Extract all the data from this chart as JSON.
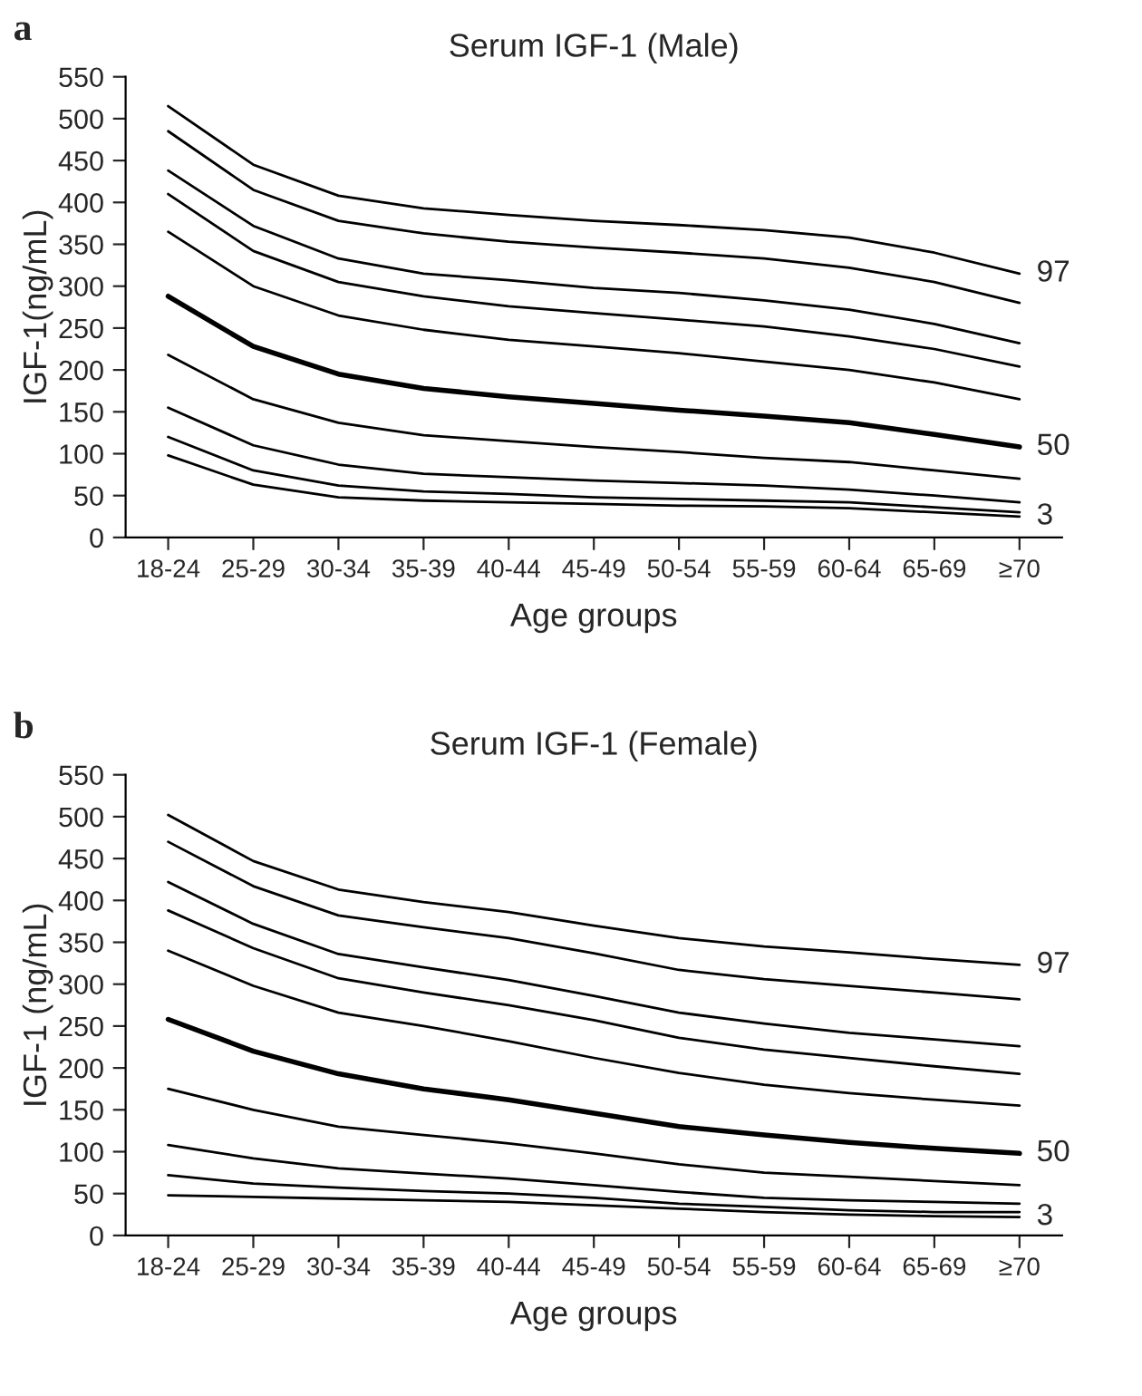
{
  "chart_data": [
    {
      "type": "line",
      "title": "Serum IGF-1 (Male)",
      "xlabel": "Age groups",
      "ylabel": "IGF-1(ng/mL)",
      "annotations": [
        "a"
      ],
      "categories": [
        "18-24",
        "25-29",
        "30-34",
        "35-39",
        "40-44",
        "45-49",
        "50-54",
        "55-59",
        "60-64",
        "65-69",
        "≥70"
      ],
      "ylim": [
        0,
        550
      ],
      "yticks": [
        0,
        50,
        100,
        150,
        200,
        250,
        300,
        350,
        400,
        450,
        500,
        550
      ],
      "grid": false,
      "legend": false,
      "marker": "none",
      "line_style": "solid",
      "series": [
        {
          "name": "97",
          "color": "#000000",
          "values": [
            515,
            445,
            408,
            393,
            385,
            378,
            373,
            367,
            358,
            340,
            315
          ]
        },
        {
          "color": "#000000",
          "values": [
            485,
            415,
            378,
            363,
            353,
            346,
            340,
            333,
            322,
            305,
            280
          ]
        },
        {
          "color": "#000000",
          "values": [
            438,
            372,
            333,
            315,
            307,
            298,
            292,
            283,
            272,
            255,
            232
          ]
        },
        {
          "color": "#000000",
          "values": [
            410,
            342,
            305,
            288,
            276,
            268,
            260,
            252,
            240,
            225,
            204
          ]
        },
        {
          "color": "#000000",
          "values": [
            365,
            300,
            265,
            248,
            236,
            228,
            220,
            210,
            200,
            185,
            165
          ]
        },
        {
          "name": "50",
          "color": "#000000",
          "values": [
            288,
            228,
            195,
            178,
            168,
            160,
            152,
            145,
            137,
            123,
            108
          ]
        },
        {
          "color": "#000000",
          "values": [
            218,
            165,
            137,
            122,
            115,
            108,
            102,
            95,
            90,
            80,
            70
          ]
        },
        {
          "color": "#000000",
          "values": [
            155,
            110,
            87,
            76,
            72,
            68,
            65,
            62,
            57,
            50,
            42
          ]
        },
        {
          "color": "#000000",
          "values": [
            120,
            80,
            62,
            55,
            52,
            48,
            46,
            44,
            42,
            36,
            30
          ]
        },
        {
          "name": "3",
          "color": "#000000",
          "values": [
            98,
            63,
            48,
            44,
            42,
            40,
            38,
            37,
            35,
            30,
            25
          ]
        }
      ]
    },
    {
      "type": "line",
      "title": "Serum IGF-1 (Female)",
      "xlabel": "Age groups",
      "ylabel": "IGF-1 (ng/mL)",
      "annotations": [
        "b"
      ],
      "categories": [
        "18-24",
        "25-29",
        "30-34",
        "35-39",
        "40-44",
        "45-49",
        "50-54",
        "55-59",
        "60-64",
        "65-69",
        "≥70"
      ],
      "ylim": [
        0,
        550
      ],
      "yticks": [
        0,
        50,
        100,
        150,
        200,
        250,
        300,
        350,
        400,
        450,
        500,
        550
      ],
      "grid": false,
      "legend": false,
      "marker": "none",
      "line_style": "solid",
      "series": [
        {
          "name": "97",
          "color": "#000000",
          "values": [
            502,
            447,
            413,
            398,
            386,
            370,
            355,
            345,
            338,
            330,
            323
          ]
        },
        {
          "color": "#000000",
          "values": [
            470,
            417,
            382,
            368,
            355,
            337,
            317,
            306,
            298,
            290,
            282
          ]
        },
        {
          "color": "#000000",
          "values": [
            422,
            372,
            336,
            320,
            305,
            286,
            266,
            253,
            242,
            234,
            226
          ]
        },
        {
          "color": "#000000",
          "values": [
            388,
            343,
            307,
            290,
            275,
            257,
            236,
            222,
            212,
            202,
            193
          ]
        },
        {
          "color": "#000000",
          "values": [
            340,
            298,
            266,
            250,
            232,
            212,
            194,
            180,
            170,
            162,
            155
          ]
        },
        {
          "name": "50",
          "color": "#000000",
          "values": [
            258,
            220,
            193,
            175,
            162,
            146,
            130,
            120,
            111,
            104,
            98
          ]
        },
        {
          "color": "#000000",
          "values": [
            175,
            150,
            130,
            120,
            110,
            98,
            85,
            75,
            70,
            65,
            60
          ]
        },
        {
          "color": "#000000",
          "values": [
            108,
            92,
            80,
            74,
            68,
            60,
            52,
            45,
            42,
            40,
            38
          ]
        },
        {
          "color": "#000000",
          "values": [
            72,
            62,
            57,
            53,
            50,
            45,
            38,
            34,
            30,
            28,
            28
          ]
        },
        {
          "name": "3",
          "color": "#000000",
          "values": [
            48,
            46,
            44,
            42,
            40,
            36,
            32,
            28,
            25,
            23,
            22
          ]
        }
      ]
    }
  ]
}
